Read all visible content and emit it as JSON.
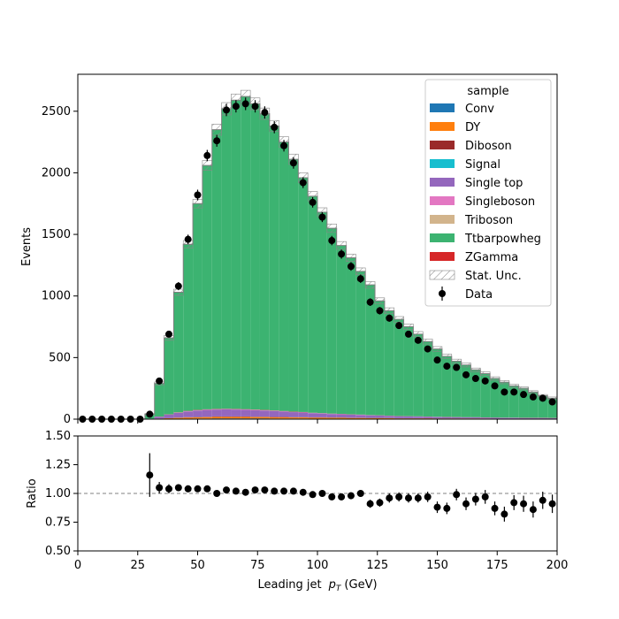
{
  "chart_data": {
    "type": "bar",
    "subtype": "stacked-histogram-with-ratio",
    "x_bin_edges_start": 0,
    "x_bin_width": 4,
    "xlim": [
      0,
      200
    ],
    "xlabel_prefix": "Leading jet",
    "xlabel_var": "p",
    "xlabel_sub": "T",
    "xlabel_unit": "(GeV)",
    "ylabel": "Events",
    "ylim": [
      0,
      2800
    ],
    "y_ticks": [
      0,
      500,
      1000,
      1500,
      2000,
      2500
    ],
    "x_ticks": [
      0,
      25,
      50,
      75,
      100,
      125,
      150,
      175,
      200
    ],
    "legend_title": "sample",
    "legend_placement": "top-right",
    "stat_unc_label": "Stat. Unc.",
    "data_label": "Data",
    "colors": {
      "Conv": "#1f77b4",
      "DY": "#ff7f0e",
      "Diboson": "#9a2a2a",
      "Signal": "#17becf",
      "Single top": "#9467bd",
      "Singleboson": "#e377c2",
      "Triboson": "#d2b48c",
      "Ttbarpowheg": "#3cb371",
      "ZGamma": "#d62728"
    },
    "series_order": [
      "Conv",
      "DY",
      "Diboson",
      "Signal",
      "Single top",
      "Singleboson",
      "Triboson",
      "Ttbarpowheg",
      "ZGamma"
    ],
    "mc_total": [
      0,
      0,
      0,
      0,
      0,
      0,
      0,
      40,
      290,
      660,
      1030,
      1420,
      1750,
      2060,
      2350,
      2520,
      2590,
      2620,
      2560,
      2480,
      2380,
      2250,
      2110,
      1960,
      1810,
      1680,
      1550,
      1410,
      1310,
      1200,
      1090,
      960,
      880,
      810,
      750,
      690,
      630,
      570,
      510,
      470,
      440,
      400,
      370,
      330,
      300,
      270,
      250,
      220,
      190,
      170
    ],
    "mc_other_stack": {
      "Conv": [
        0,
        0,
        0,
        0,
        0,
        0,
        0,
        0,
        1,
        2,
        3,
        4,
        5,
        5,
        6,
        6,
        6,
        6,
        6,
        6,
        5,
        5,
        5,
        5,
        4,
        4,
        4,
        4,
        3,
        3,
        3,
        3,
        3,
        2,
        2,
        2,
        2,
        2,
        2,
        2,
        2,
        2,
        1,
        1,
        1,
        1,
        1,
        1,
        1,
        1
      ],
      "DY": [
        0,
        0,
        0,
        0,
        0,
        0,
        0,
        1,
        3,
        5,
        7,
        9,
        10,
        11,
        12,
        12,
        12,
        12,
        11,
        11,
        10,
        10,
        9,
        9,
        8,
        8,
        7,
        7,
        6,
        6,
        5,
        5,
        5,
        4,
        4,
        4,
        4,
        3,
        3,
        3,
        3,
        3,
        3,
        2,
        2,
        2,
        2,
        2,
        2,
        2
      ],
      "Diboson": [
        0,
        0,
        0,
        0,
        0,
        0,
        0,
        0,
        1,
        1,
        2,
        2,
        2,
        3,
        3,
        3,
        3,
        3,
        3,
        3,
        3,
        3,
        2,
        2,
        2,
        2,
        2,
        2,
        2,
        2,
        2,
        2,
        1,
        1,
        1,
        1,
        1,
        1,
        1,
        1,
        1,
        1,
        1,
        1,
        1,
        1,
        1,
        1,
        1,
        1
      ],
      "Signal": [
        0,
        0,
        0,
        0,
        0,
        0,
        0,
        0,
        0,
        0,
        1,
        1,
        1,
        1,
        1,
        1,
        1,
        1,
        1,
        1,
        1,
        1,
        1,
        1,
        1,
        1,
        1,
        1,
        1,
        1,
        1,
        1,
        1,
        1,
        1,
        1,
        0,
        0,
        0,
        0,
        0,
        0,
        0,
        0,
        0,
        0,
        0,
        0,
        0,
        0
      ],
      "Single top": [
        0,
        0,
        0,
        0,
        0,
        0,
        0,
        3,
        14,
        28,
        38,
        46,
        52,
        55,
        56,
        57,
        56,
        54,
        52,
        49,
        46,
        43,
        40,
        37,
        34,
        31,
        28,
        26,
        24,
        22,
        20,
        18,
        16,
        15,
        14,
        13,
        12,
        11,
        10,
        9,
        8,
        8,
        7,
        7,
        6,
        6,
        5,
        5,
        5,
        4
      ],
      "Singleboson": [
        0,
        0,
        0,
        0,
        0,
        0,
        0,
        0,
        1,
        2,
        2,
        3,
        3,
        3,
        3,
        3,
        3,
        3,
        3,
        3,
        3,
        2,
        2,
        2,
        2,
        2,
        2,
        2,
        2,
        2,
        1,
        1,
        1,
        1,
        1,
        1,
        1,
        1,
        1,
        1,
        1,
        1,
        1,
        1,
        1,
        1,
        1,
        1,
        1,
        1
      ],
      "Triboson": [
        0,
        0,
        0,
        0,
        0,
        0,
        0,
        0,
        0,
        0,
        0,
        0,
        0,
        0,
        0,
        0,
        0,
        0,
        0,
        0,
        0,
        0,
        0,
        0,
        0,
        0,
        0,
        0,
        0,
        0,
        0,
        0,
        0,
        0,
        0,
        0,
        0,
        0,
        0,
        0,
        0,
        0,
        0,
        0,
        0,
        0,
        0,
        0,
        0,
        0
      ],
      "ZGamma": [
        0,
        0,
        0,
        0,
        0,
        0,
        0,
        0,
        1,
        1,
        2,
        2,
        2,
        2,
        2,
        2,
        2,
        2,
        2,
        2,
        2,
        2,
        2,
        2,
        1,
        1,
        1,
        1,
        1,
        1,
        1,
        1,
        1,
        1,
        1,
        1,
        1,
        1,
        1,
        1,
        1,
        1,
        1,
        1,
        1,
        1,
        1,
        1,
        1,
        1
      ]
    },
    "stat_unc": [
      0,
      0,
      0,
      0,
      0,
      0,
      0,
      5,
      12,
      20,
      25,
      30,
      35,
      40,
      45,
      50,
      50,
      50,
      48,
      46,
      45,
      43,
      42,
      40,
      38,
      36,
      34,
      32,
      30,
      28,
      27,
      25,
      24,
      23,
      22,
      21,
      20,
      19,
      18,
      17,
      16,
      15,
      15,
      14,
      13,
      12,
      12,
      11,
      10,
      10
    ],
    "data_points": {
      "x": [
        2,
        6,
        10,
        14,
        18,
        22,
        26,
        30,
        34,
        38,
        42,
        46,
        50,
        54,
        58,
        62,
        66,
        70,
        74,
        78,
        82,
        86,
        90,
        94,
        98,
        102,
        106,
        110,
        114,
        118,
        122,
        126,
        130,
        134,
        138,
        142,
        146,
        150,
        154,
        158,
        162,
        166,
        170,
        174,
        178,
        182,
        186,
        190,
        194,
        198
      ],
      "y": [
        0,
        0,
        0,
        0,
        0,
        0,
        0,
        40,
        310,
        690,
        1080,
        1460,
        1820,
        2140,
        2260,
        2510,
        2540,
        2560,
        2540,
        2490,
        2370,
        2220,
        2080,
        1920,
        1760,
        1640,
        1450,
        1340,
        1240,
        1140,
        950,
        880,
        820,
        760,
        690,
        640,
        570,
        480,
        430,
        420,
        360,
        330,
        310,
        270,
        220,
        220,
        200,
        180,
        170,
        140
      ],
      "yerr": [
        0,
        0,
        0,
        0,
        0,
        0,
        0,
        6,
        18,
        26,
        33,
        38,
        43,
        46,
        48,
        50,
        50,
        51,
        50,
        50,
        49,
        47,
        46,
        44,
        42,
        40,
        38,
        37,
        35,
        34,
        31,
        30,
        29,
        28,
        26,
        25,
        24,
        22,
        21,
        20,
        19,
        18,
        18,
        16,
        15,
        15,
        14,
        13,
        13,
        12
      ]
    },
    "ratio_panel": {
      "ylabel": "Ratio",
      "ylim": [
        0.5,
        1.5
      ],
      "y_ticks": [
        0.5,
        0.75,
        1.0,
        1.25,
        1.5
      ],
      "y_tick_labels": [
        "0.50",
        "0.75",
        "1.00",
        "1.25",
        "1.50"
      ],
      "reference_line": 1.0,
      "x": [
        30,
        34,
        38,
        42,
        46,
        50,
        54,
        58,
        62,
        66,
        70,
        74,
        78,
        82,
        86,
        90,
        94,
        98,
        102,
        106,
        110,
        114,
        118,
        122,
        126,
        130,
        134,
        138,
        142,
        146,
        150,
        154,
        158,
        162,
        166,
        170,
        174,
        178,
        182,
        186,
        190,
        194,
        198
      ],
      "y": [
        1.16,
        1.05,
        1.04,
        1.05,
        1.04,
        1.04,
        1.04,
        1.0,
        1.03,
        1.02,
        1.01,
        1.03,
        1.03,
        1.02,
        1.02,
        1.02,
        1.01,
        0.99,
        1.0,
        0.97,
        0.97,
        0.98,
        1.0,
        0.91,
        0.92,
        0.96,
        0.97,
        0.96,
        0.96,
        0.97,
        0.88,
        0.87,
        0.99,
        0.91,
        0.95,
        0.97,
        0.87,
        0.82,
        0.92,
        0.91,
        0.86,
        0.94,
        0.91
      ],
      "yerr": [
        0.19,
        0.05,
        0.04,
        0.03,
        0.03,
        0.025,
        0.022,
        0.02,
        0.02,
        0.02,
        0.02,
        0.02,
        0.02,
        0.02,
        0.02,
        0.02,
        0.02,
        0.02,
        0.025,
        0.025,
        0.03,
        0.03,
        0.03,
        0.035,
        0.035,
        0.04,
        0.04,
        0.04,
        0.04,
        0.045,
        0.05,
        0.05,
        0.05,
        0.055,
        0.055,
        0.06,
        0.06,
        0.065,
        0.065,
        0.07,
        0.07,
        0.075,
        0.08
      ]
    }
  }
}
